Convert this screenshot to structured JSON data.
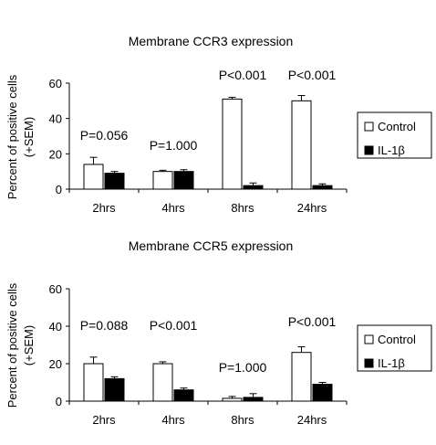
{
  "chart_data": [
    {
      "type": "bar",
      "title": "Membrane CCR3 expression",
      "ylabel_line1": "Percent of positive cells",
      "ylabel_line2": "(+SEM)",
      "ylim": [
        0,
        60
      ],
      "yticks": [
        "0",
        "20",
        "40",
        "60"
      ],
      "categories": [
        "2hrs",
        "4hrs",
        "8hrs",
        "24hrs"
      ],
      "p_values": [
        "P=0.056",
        "P=1.000",
        "P<0.001",
        "P<0.001"
      ],
      "series": [
        {
          "name": "Control",
          "color": "#ffffff",
          "values": [
            14,
            10,
            51,
            50
          ],
          "sem": [
            4,
            0.7,
            1,
            3
          ]
        },
        {
          "name": "IL-1β",
          "color": "#000000",
          "values": [
            9,
            10,
            2,
            2
          ],
          "sem": [
            1,
            1,
            1.5,
            1
          ]
        }
      ],
      "grid": false,
      "legend": "right"
    },
    {
      "type": "bar",
      "title": "Membrane CCR5 expression",
      "ylabel_line1": "Percent of positive cells",
      "ylabel_line2": "(+SEM)",
      "ylim": [
        0,
        60
      ],
      "yticks": [
        "0",
        "20",
        "40",
        "60"
      ],
      "categories": [
        "2hrs",
        "4hrs",
        "8hrs",
        "24hrs"
      ],
      "p_values": [
        "P=0.088",
        "P<0.001",
        "P=1.000",
        "P<0.001"
      ],
      "series": [
        {
          "name": "Control",
          "color": "#ffffff",
          "values": [
            20,
            20,
            1.5,
            26
          ],
          "sem": [
            3.5,
            1,
            1,
            3
          ]
        },
        {
          "name": "IL-1β",
          "color": "#000000",
          "values": [
            12,
            6,
            2,
            9
          ],
          "sem": [
            1,
            1,
            2,
            1
          ]
        }
      ],
      "grid": false,
      "legend": "right"
    }
  ]
}
